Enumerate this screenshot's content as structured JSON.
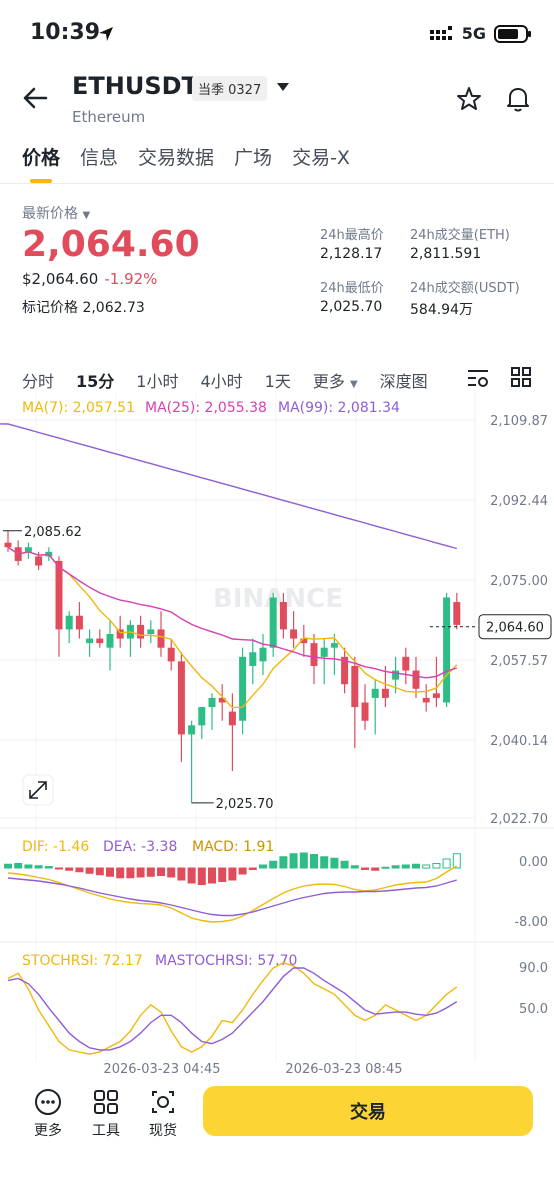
{
  "status_bar": {
    "time": "10:39",
    "network": "5G"
  },
  "header": {
    "symbol": "ETHUSDT",
    "contract_badge": "当季 0327",
    "subtitle": "Ethereum"
  },
  "tabs": [
    {
      "label": "价格",
      "active": true
    },
    {
      "label": "信息",
      "active": false
    },
    {
      "label": "交易数据",
      "active": false
    },
    {
      "label": "广场",
      "active": false
    },
    {
      "label": "交易-X",
      "active": false
    }
  ],
  "price": {
    "latest_label": "最新价格",
    "last": "2,064.60",
    "usd": "$2,064.60",
    "change": "-1.92%",
    "mark_label": "标记价格",
    "mark": "2,062.73"
  },
  "stats": {
    "high_label": "24h最高价",
    "high": "2,128.17",
    "vol_eth_label": "24h成交量(ETH)",
    "vol_eth": "2,811.591",
    "low_label": "24h最低价",
    "low": "2,025.70",
    "vol_usdt_label": "24h成交额(USDT)",
    "vol_usdt": "584.94万"
  },
  "intervals": [
    "分时",
    "15分",
    "1小时",
    "4小时",
    "1天",
    "更多",
    "深度图"
  ],
  "active_interval": "15分",
  "chart": {
    "ma_labels": [
      "MA(7): 2,057.51",
      "MA(25): 2,055.38",
      "MA(99): 2,081.34"
    ],
    "y_axis": [
      "2,109.87",
      "2,092.44",
      "2,075.00",
      "2,057.57",
      "2,040.14",
      "2,022.70"
    ],
    "current_price_tag": "2,064.60",
    "high_marker": "2,085.62",
    "low_marker": "2,025.70",
    "watermark": "BINANCE",
    "macd_label": {
      "dif": "DIF: -1.46",
      "dea": "DEA: -3.38",
      "macd": "MACD: 1.91"
    },
    "macd_axis": [
      "0.00",
      "-8.00"
    ],
    "stochrsi_label": {
      "k": "STOCHRSI: 72.17",
      "d": "MASTOCHRSI: 57.70"
    },
    "stochrsi_axis": [
      "90.0",
      "50.0"
    ],
    "time_axis": [
      "2026-03-23 04:45",
      "2026-03-23 08:45"
    ]
  },
  "colors": {
    "up": "#2ebd85",
    "down": "#e04c5c",
    "ma7": "#f0b90b",
    "ma25": "#d63fb3",
    "ma99": "#8e5ed6",
    "accent": "#fcd535"
  },
  "bottom": {
    "more_label": "更多",
    "tools_label": "工具",
    "spot_label": "现货",
    "trade_label": "交易"
  }
}
